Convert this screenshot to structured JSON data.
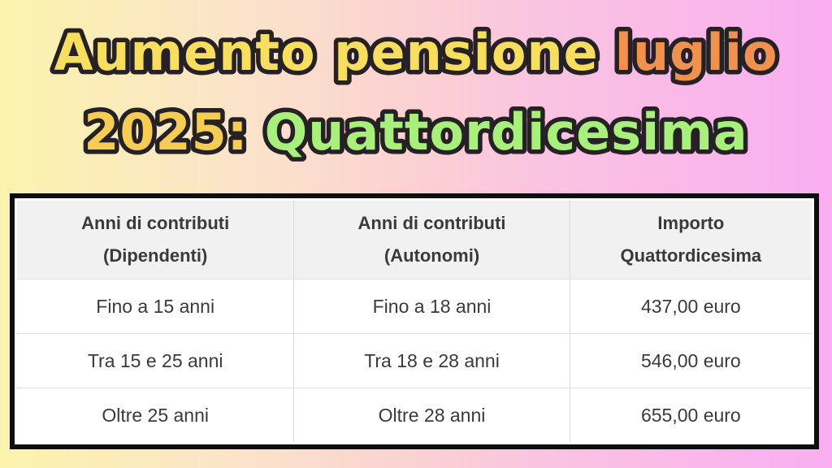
{
  "title": {
    "full": "Aumento pensione luglio 2025: Quattordicesima",
    "line1": {
      "part1": "Aumento pensione",
      "part2": "luglio"
    },
    "line2": {
      "part1": "2025:",
      "part2": "Quattordicesima"
    }
  },
  "colors": {
    "title_yellow": "#F8DE5E",
    "title_orange": "#F0914E",
    "title_gold": "#F5CD55",
    "title_green": "#A9EF7B",
    "title_outline": "#262125",
    "background_left": "#FBF3AD",
    "background_mid": "#FBD1D3",
    "background_right": "#F9AEF1",
    "table_border": "#0E0E0E",
    "table_header_bg": "#F1F1F2",
    "table_text": "#3A3A3A"
  },
  "table": {
    "headers": [
      {
        "line1": "Anni di contributi",
        "line2": "(Dipendenti)"
      },
      {
        "line1": "Anni di contributi",
        "line2": "(Autonomi)"
      },
      {
        "line1": "Importo",
        "line2": "Quattordicesima"
      }
    ]
  },
  "chart_data": {
    "type": "table",
    "title": "Aumento pensione luglio 2025: Quattordicesima",
    "columns": [
      "Anni di contributi (Dipendenti)",
      "Anni di contributi (Autonomi)",
      "Importo Quattordicesima"
    ],
    "rows": [
      [
        "Fino a 15 anni",
        "Fino a 18 anni",
        "437,00 euro"
      ],
      [
        "Tra 15 e 25 anni",
        "Tra 18 e 28 anni",
        "546,00 euro"
      ],
      [
        "Oltre 25 anni",
        "Oltre 28 anni",
        "655,00 euro"
      ]
    ]
  }
}
